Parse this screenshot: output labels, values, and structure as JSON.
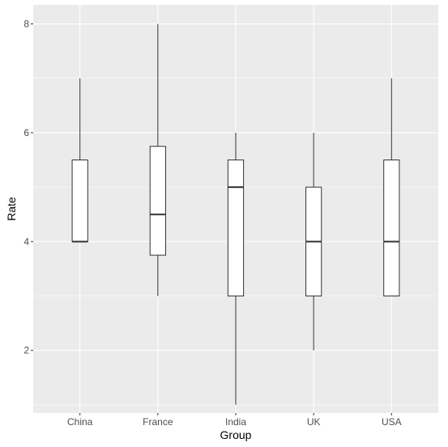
{
  "chart_data": {
    "type": "boxplot",
    "title": "",
    "xlabel": "Group",
    "ylabel": "Rate",
    "categories": [
      "China",
      "France",
      "India",
      "UK",
      "USA"
    ],
    "boxes": [
      {
        "category": "China",
        "min": 4,
        "q1": 4,
        "median": 4,
        "q3": 5.5,
        "max": 7
      },
      {
        "category": "France",
        "min": 3,
        "q1": 3.75,
        "median": 4.5,
        "q3": 5.75,
        "max": 8
      },
      {
        "category": "India",
        "min": 1,
        "q1": 3,
        "median": 5,
        "q3": 5.5,
        "max": 6
      },
      {
        "category": "UK",
        "min": 2,
        "q1": 3,
        "median": 4,
        "q3": 5,
        "max": 6
      },
      {
        "category": "USA",
        "min": 3,
        "q1": 3,
        "median": 4,
        "q3": 5.5,
        "max": 7
      }
    ],
    "ylim": [
      0.85,
      8.35
    ],
    "yticks": [
      2,
      4,
      6,
      8
    ],
    "ytick_labels": [
      "2",
      "4",
      "6",
      "8"
    ],
    "grid": true,
    "colors": {
      "panel": "#ebebeb",
      "grid": "#ffffff",
      "box_fill": "#ffffff",
      "box_stroke": "#333333",
      "tick_text": "#4d4d4d",
      "tick_mark": "#333333"
    }
  }
}
